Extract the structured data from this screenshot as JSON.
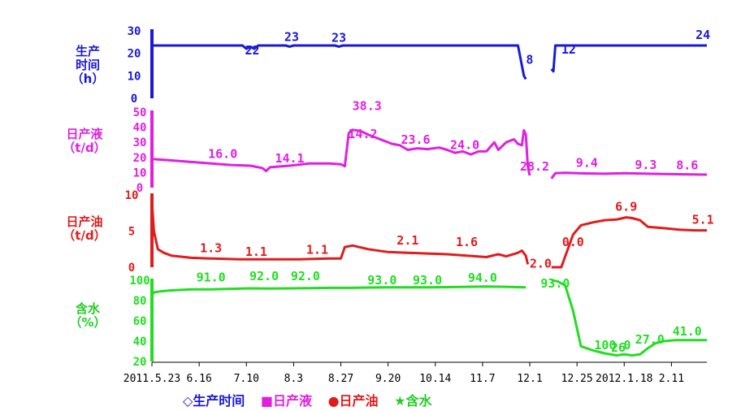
{
  "chart_data": [
    {
      "type": "line",
      "ylabel": "生产时间\n（h）",
      "ylim": [
        0,
        30
      ],
      "ticks": [
        "30",
        "20",
        "10",
        "0"
      ],
      "color": "#1a1ad6",
      "annotations": [
        {
          "text": "22",
          "day": 51
        },
        {
          "text": "23",
          "day": 71
        },
        {
          "text": "23",
          "day": 95
        },
        {
          "text": "8",
          "day": 187
        },
        {
          "text": "12",
          "day": 206
        },
        {
          "text": "24",
          "day": 280
        }
      ],
      "series": [
        {
          "points": [
            [
              0,
              23.5
            ],
            [
              46,
              23.5
            ],
            [
              48,
              22
            ],
            [
              50,
              23
            ],
            [
              52,
              22
            ],
            [
              54,
              23.5
            ],
            [
              68,
              23.5
            ],
            [
              70,
              23
            ],
            [
              72,
              23.5
            ],
            [
              93,
              23.5
            ],
            [
              95,
              23
            ],
            [
              97,
              23.5
            ],
            [
              186,
              23.5
            ],
            [
              189,
              10
            ],
            [
              190,
              8.5
            ]
          ]
        },
        {
          "points": [
            [
              203,
              13
            ],
            [
              204,
              12
            ],
            [
              205,
              23.5
            ],
            [
              282,
              23.5
            ]
          ]
        }
      ]
    },
    {
      "type": "line",
      "ylabel": "日产液\n（t/d）",
      "ylim": [
        0,
        50
      ],
      "ticks": [
        "50",
        "40",
        "30",
        "20",
        "10",
        "0"
      ],
      "color": "#e020e0",
      "annotations": [
        {
          "text": "16.0",
          "day": 36
        },
        {
          "text": "14.1",
          "day": 70
        },
        {
          "text": "38.3",
          "day": 106
        },
        {
          "text": "14.2",
          "day": 103
        },
        {
          "text": "23.6",
          "day": 134
        },
        {
          "text": "24.0",
          "day": 159
        },
        {
          "text": "28.2",
          "day": 192
        },
        {
          "text": "9.4",
          "day": 221
        },
        {
          "text": "9.3",
          "day": 251
        },
        {
          "text": "8.6",
          "day": 272
        }
      ],
      "series": [
        {
          "points": [
            [
              0,
              19
            ],
            [
              10,
              18
            ],
            [
              20,
              17
            ],
            [
              30,
              16
            ],
            [
              40,
              15
            ],
            [
              50,
              14.5
            ],
            [
              56,
              13
            ],
            [
              58,
              11
            ],
            [
              60,
              13.5
            ],
            [
              70,
              14.5
            ],
            [
              80,
              16
            ],
            [
              90,
              16
            ],
            [
              96,
              15.5
            ],
            [
              98,
              14.2
            ],
            [
              100,
              36
            ],
            [
              102,
              38.3
            ],
            [
              106,
              37.5
            ],
            [
              110,
              35
            ],
            [
              116,
              32
            ],
            [
              122,
              29
            ],
            [
              126,
              28
            ],
            [
              130,
              25
            ],
            [
              135,
              26
            ],
            [
              140,
              25.5
            ],
            [
              146,
              26.5
            ],
            [
              150,
              25
            ],
            [
              154,
              23
            ],
            [
              158,
              24
            ],
            [
              162,
              22
            ],
            [
              166,
              24
            ],
            [
              170,
              24
            ],
            [
              174,
              30
            ],
            [
              176,
              25
            ],
            [
              180,
              30
            ],
            [
              184,
              32
            ],
            [
              186,
              29
            ],
            [
              188,
              28
            ],
            [
              189,
              38
            ],
            [
              190,
              35
            ],
            [
              191,
              14
            ],
            [
              192,
              8
            ]
          ]
        },
        {
          "points": [
            [
              203,
              6
            ],
            [
              205,
              9.5
            ],
            [
              210,
              9.8
            ],
            [
              220,
              9.4
            ],
            [
              230,
              9.2
            ],
            [
              240,
              9.5
            ],
            [
              250,
              9.3
            ],
            [
              260,
              9
            ],
            [
              270,
              8.8
            ],
            [
              282,
              8.6
            ]
          ]
        }
      ]
    },
    {
      "type": "line",
      "ylabel": "日产油\n（t/d）",
      "ylim": [
        0,
        10
      ],
      "ticks": [
        "10",
        "5",
        "0"
      ],
      "color": "#e01c1c",
      "annotations": [
        {
          "text": "1.3",
          "day": 30
        },
        {
          "text": "1.1",
          "day": 53
        },
        {
          "text": "1.1",
          "day": 84
        },
        {
          "text": "2.1",
          "day": 130
        },
        {
          "text": "1.6",
          "day": 160
        },
        {
          "text": "2.0",
          "day": 200
        },
        {
          "text": "0.0",
          "day": 214
        },
        {
          "text": "6.9",
          "day": 241
        },
        {
          "text": "5.1",
          "day": 280
        }
      ],
      "series": [
        {
          "points": [
            [
              0,
              9
            ],
            [
              1,
              5
            ],
            [
              3,
              2.5
            ],
            [
              6,
              2
            ],
            [
              10,
              1.6
            ],
            [
              20,
              1.3
            ],
            [
              30,
              1.2
            ],
            [
              45,
              1.1
            ],
            [
              60,
              1.1
            ],
            [
              75,
              1.1
            ],
            [
              90,
              1.2
            ],
            [
              96,
              1.2
            ],
            [
              98,
              2.8
            ],
            [
              102,
              3
            ],
            [
              110,
              2.5
            ],
            [
              120,
              2.1
            ],
            [
              130,
              2
            ],
            [
              140,
              1.9
            ],
            [
              150,
              1.8
            ],
            [
              160,
              1.6
            ],
            [
              170,
              1.4
            ],
            [
              176,
              1.8
            ],
            [
              180,
              1.5
            ],
            [
              186,
              2
            ],
            [
              188,
              2.3
            ],
            [
              190,
              1.6
            ],
            [
              191,
              0.4
            ]
          ]
        },
        {
          "points": [
            [
              203,
              0
            ],
            [
              208,
              0
            ],
            [
              212,
              3
            ],
            [
              214,
              4.5
            ],
            [
              218,
              5.8
            ],
            [
              224,
              6.2
            ],
            [
              230,
              6.5
            ],
            [
              236,
              6.6
            ],
            [
              241,
              6.9
            ],
            [
              244,
              6.8
            ],
            [
              248,
              6.5
            ],
            [
              252,
              5.6
            ],
            [
              260,
              5.4
            ],
            [
              268,
              5.2
            ],
            [
              276,
              5.1
            ],
            [
              282,
              5.1
            ]
          ]
        }
      ]
    },
    {
      "type": "line",
      "ylabel": "含水\n（%）",
      "ylim": [
        20,
        100
      ],
      "ticks": [
        "100",
        "80",
        "60",
        "40",
        "20"
      ],
      "color": "#22dd22",
      "annotations": [
        {
          "text": "91.0",
          "day": 30
        },
        {
          "text": "92.0",
          "day": 57
        },
        {
          "text": "92.0",
          "day": 78
        },
        {
          "text": "93.0",
          "day": 117
        },
        {
          "text": "93.0",
          "day": 140
        },
        {
          "text": "94.0",
          "day": 168
        },
        {
          "text": "93.0",
          "day": 200
        },
        {
          "text": "100.0",
          "day": 225
        },
        {
          "text": "26",
          "day": 237
        },
        {
          "text": "27.0",
          "day": 253
        },
        {
          "text": "41.0",
          "day": 272
        }
      ],
      "series": [
        {
          "points": [
            [
              0,
              85
            ],
            [
              1,
              88
            ],
            [
              4,
              89
            ],
            [
              10,
              90
            ],
            [
              20,
              91
            ],
            [
              30,
              91
            ],
            [
              40,
              91.5
            ],
            [
              50,
              92
            ],
            [
              60,
              91.8
            ],
            [
              70,
              92
            ],
            [
              80,
              92.2
            ],
            [
              90,
              92.5
            ],
            [
              100,
              92.5
            ],
            [
              110,
              92.8
            ],
            [
              120,
              93
            ],
            [
              130,
              93
            ],
            [
              140,
              93
            ],
            [
              150,
              93.2
            ],
            [
              160,
              93.5
            ],
            [
              170,
              93.8
            ],
            [
              180,
              93.5
            ],
            [
              190,
              93
            ]
          ]
        },
        {
          "points": [
            [
              203,
              100
            ],
            [
              206,
              99
            ],
            [
              210,
              95
            ],
            [
              214,
              70
            ],
            [
              218,
              35
            ],
            [
              224,
              31
            ],
            [
              230,
              28
            ],
            [
              236,
              26
            ],
            [
              240,
              27
            ],
            [
              244,
              26
            ],
            [
              248,
              27
            ],
            [
              252,
              33
            ],
            [
              256,
              38
            ],
            [
              260,
              40
            ],
            [
              266,
              41
            ],
            [
              272,
              41
            ],
            [
              282,
              41
            ]
          ]
        }
      ]
    }
  ],
  "x_axis": {
    "days_total": 282,
    "ticks": [
      {
        "label": "2011.5.23",
        "day": 0
      },
      {
        "label": "6.16",
        "day": 24
      },
      {
        "label": "7.10",
        "day": 48
      },
      {
        "label": "8.3",
        "day": 72
      },
      {
        "label": "8.27",
        "day": 96
      },
      {
        "label": "9.20",
        "day": 120
      },
      {
        "label": "10.14",
        "day": 144
      },
      {
        "label": "11.7",
        "day": 168
      },
      {
        "label": "12.1",
        "day": 192
      },
      {
        "label": "12.25",
        "day": 216
      },
      {
        "label": "2012.1.18",
        "day": 240
      },
      {
        "label": "2.11",
        "day": 264
      }
    ]
  },
  "legend": {
    "items": [
      "◇生产时间",
      "■日产液",
      "●日产油",
      "★含水"
    ],
    "colors": [
      "#1a1ad6",
      "#e020e0",
      "#e01c1c",
      "#22cc22"
    ]
  }
}
